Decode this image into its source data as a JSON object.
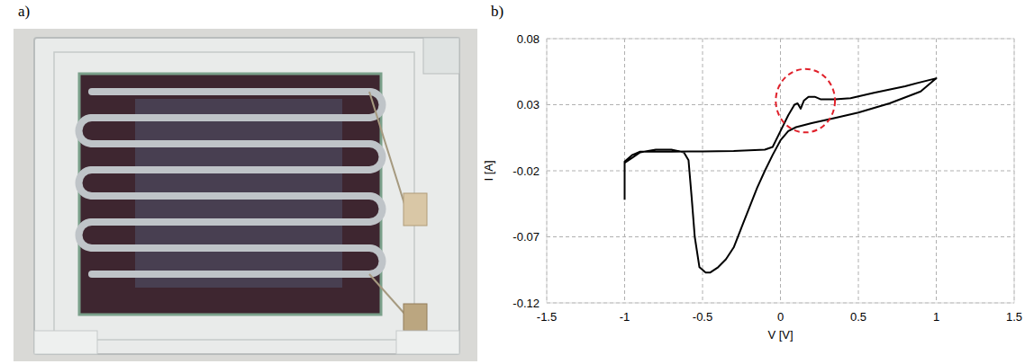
{
  "panel_labels": [
    "a)",
    "b)"
  ],
  "highlight": {
    "x": 0.16,
    "y": 0.033,
    "x_radius": 0.19,
    "y_radius": 0.024,
    "color": "#e0202a",
    "line_style": "dashed"
  },
  "chart_data": {
    "type": "line",
    "x_label": "V [V]",
    "y_label": "I [A]",
    "xlim": [
      -1.5,
      1.5
    ],
    "xticks": [
      -1.5,
      -1,
      -0.5,
      0,
      0.5,
      1,
      1.5
    ],
    "ylim": [
      -0.12,
      0.08
    ],
    "yticks": [
      -0.12,
      -0.07,
      -0.02,
      0.03,
      0.08
    ],
    "grid": true,
    "color": "#000000",
    "line_style": "solid",
    "x": [
      -1,
      -1,
      -0.95,
      -0.9,
      -0.7,
      -0.5,
      -0.3,
      -0.1,
      -0.05,
      0,
      0.05,
      0.09,
      0.11,
      0.13,
      0.15,
      0.18,
      0.22,
      0.26,
      0.35,
      0.45,
      0.6,
      0.8,
      1,
      0.9,
      0.7,
      0.5,
      0.35,
      0.2,
      0.1,
      0.05,
      0,
      -0.05,
      -0.1,
      -0.15,
      -0.2,
      -0.25,
      -0.3,
      -0.35,
      -0.4,
      -0.45,
      -0.48,
      -0.52,
      -0.55,
      -0.57,
      -0.59,
      -0.62,
      -0.7,
      -0.8,
      -0.9,
      -0.95,
      -1
    ],
    "values": [
      -0.042,
      -0.013,
      -0.008,
      -0.0055,
      -0.0055,
      -0.0053,
      -0.005,
      -0.004,
      -0.002,
      0.01,
      0.022,
      0.03,
      0.031,
      0.027,
      0.033,
      0.036,
      0.036,
      0.034,
      0.034,
      0.035,
      0.039,
      0.044,
      0.05,
      0.04,
      0.031,
      0.024,
      0.02,
      0.016,
      0.013,
      0.01,
      0.003,
      -0.008,
      -0.02,
      -0.033,
      -0.048,
      -0.063,
      -0.078,
      -0.087,
      -0.093,
      -0.097,
      -0.097,
      -0.093,
      -0.07,
      -0.04,
      -0.012,
      -0.006,
      -0.004,
      -0.004,
      -0.006,
      -0.01,
      -0.014
    ]
  }
}
